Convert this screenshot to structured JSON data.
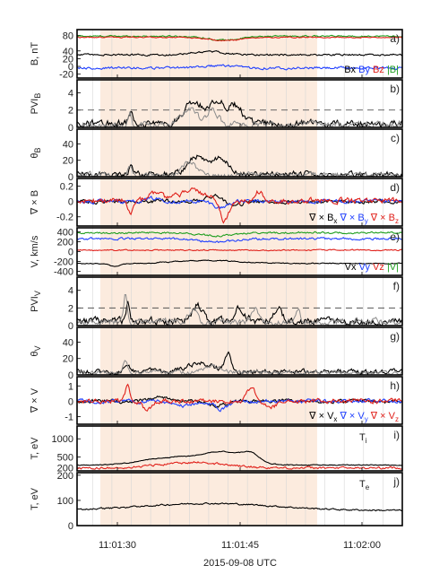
{
  "chart_data": {
    "type": "line",
    "x_axis": {
      "label": "2015-09-08 UTC",
      "ticks": [
        "11:01:30",
        "11:01:45",
        "11:02:00"
      ],
      "range_seconds_after_11_01": [
        23,
        65
      ]
    },
    "shaded_interval_seconds": [
      26,
      54
    ],
    "panels": [
      {
        "id": "a",
        "tag": "a)",
        "ylabel": "B, nT",
        "yticks": [
          "80",
          "40",
          "20",
          "0",
          "-20"
        ],
        "ylim": [
          -30,
          95
        ],
        "legend": [
          {
            "text": "Bx",
            "color": "#000000"
          },
          {
            "text": "By",
            "color": "#1f3fff"
          },
          {
            "text": "Bz",
            "color": "#e0201a"
          },
          {
            "text": "|B|",
            "color": "#1f9e1f"
          }
        ],
        "series": [
          {
            "name": "|B|",
            "color": "#1f9e1f",
            "base": 78,
            "noise": 1.5,
            "bumps": [
              [
                42,
                3,
                -10
              ]
            ]
          },
          {
            "name": "Bz",
            "color": "#e0201a",
            "base": 75,
            "noise": 1.2,
            "bumps": [
              [
                42,
                3,
                -8
              ]
            ]
          },
          {
            "name": "Bx",
            "color": "#000000",
            "base": 30,
            "noise": 2,
            "bumps": [
              [
                40,
                3,
                8
              ]
            ]
          },
          {
            "name": "By",
            "color": "#1f3fff",
            "base": -4,
            "noise": 2.5,
            "bumps": [
              [
                41,
                3,
                6
              ]
            ]
          }
        ]
      },
      {
        "id": "b",
        "tag": "b)",
        "ylabel": "PVI_B",
        "yticks": [
          "4",
          "2",
          "0"
        ],
        "ylim": [
          0,
          5.5
        ],
        "dashed": 2,
        "series": [
          {
            "name": "black",
            "color": "#000000",
            "base": 0.4,
            "noise": 0.35,
            "bumps": [
              [
                30,
                0.4,
                1.4
              ],
              [
                38,
                1.5,
                2.6
              ],
              [
                41,
                1.5,
                2.8
              ],
              [
                43.5,
                1.2,
                2.0
              ]
            ]
          },
          {
            "name": "gray",
            "color": "#8a8a8a",
            "base": 0.3,
            "noise": 0.3,
            "bumps": [
              [
                29.8,
                0.3,
                1.6
              ],
              [
                37.5,
                1.3,
                2.0
              ],
              [
                40.5,
                1.0,
                1.8
              ]
            ]
          }
        ]
      },
      {
        "id": "c",
        "tag": "c)",
        "ylabel": "θ_B",
        "yticks": [
          "40",
          "20",
          "0"
        ],
        "ylim": [
          0,
          58
        ],
        "series": [
          {
            "name": "black",
            "color": "#000000",
            "base": 3,
            "noise": 3,
            "bumps": [
              [
                30,
                0.4,
                10
              ],
              [
                38.5,
                1.5,
                22
              ],
              [
                41.5,
                1.5,
                20
              ]
            ]
          },
          {
            "name": "gray",
            "color": "#8a8a8a",
            "base": 2,
            "noise": 2.5,
            "bumps": [
              [
                29.8,
                0.3,
                12
              ],
              [
                37.5,
                1.2,
                16
              ]
            ]
          }
        ]
      },
      {
        "id": "d",
        "tag": "d)",
        "ylabel": "∇ × B",
        "yticks": [
          "0.2",
          "0",
          "-0.2"
        ],
        "ylim": [
          -0.32,
          0.3
        ],
        "legend": [
          {
            "text": "∇ × B",
            "sub": "x",
            "color": "#000000"
          },
          {
            "text": "∇ × B",
            "sub": "y",
            "color": "#1f3fff"
          },
          {
            "text": "∇ × B",
            "sub": "z",
            "color": "#e0201a"
          }
        ],
        "series": [
          {
            "name": "∇ × B x",
            "color": "#000000",
            "base": 0,
            "noise": 0.02,
            "bumps": [
              [
                41,
                1.5,
                0.08
              ],
              [
                43,
                1.5,
                -0.06
              ]
            ]
          },
          {
            "name": "∇ × B y",
            "color": "#1f3fff",
            "base": 0,
            "noise": 0.02,
            "bumps": [
              [
                33,
                1.5,
                0.04
              ],
              [
                41.5,
                1.2,
                -0.08
              ]
            ]
          },
          {
            "name": "∇ × B z",
            "color": "#e0201a",
            "base": 0.01,
            "noise": 0.03,
            "bumps": [
              [
                30,
                0.5,
                -0.15
              ],
              [
                33,
                1.2,
                0.1
              ],
              [
                38,
                2.5,
                0.12
              ],
              [
                42,
                0.8,
                -0.26
              ],
              [
                46.5,
                0.8,
                0.12
              ]
            ]
          }
        ]
      },
      {
        "id": "e",
        "tag": "e)",
        "ylabel": "V, km/s",
        "yticks": [
          "400",
          "200",
          "0",
          "-200",
          "-400"
        ],
        "ylim": [
          -480,
          480
        ],
        "legend": [
          {
            "text": "Vx",
            "color": "#000000"
          },
          {
            "text": "Vy",
            "color": "#1f3fff"
          },
          {
            "text": "Vz",
            "color": "#e0201a"
          },
          {
            "text": "|V|",
            "color": "#1f9e1f"
          }
        ],
        "series": [
          {
            "name": "|V|",
            "color": "#1f9e1f",
            "base": 380,
            "noise": 15,
            "bumps": [
              [
                41,
                3,
                -60
              ]
            ]
          },
          {
            "name": "Vy",
            "color": "#1f3fff",
            "base": 260,
            "noise": 18,
            "bumps": [
              [
                41,
                3,
                -70
              ]
            ]
          },
          {
            "name": "Vz",
            "color": "#e0201a",
            "base": 30,
            "noise": 10,
            "bumps": []
          },
          {
            "name": "Vx",
            "color": "#000000",
            "base": -240,
            "noise": 8,
            "bumps": [
              [
                28,
                1,
                -60
              ],
              [
                40,
                6,
                60
              ]
            ]
          }
        ]
      },
      {
        "id": "f",
        "tag": "f)",
        "ylabel": "PVI_V",
        "yticks": [
          "4",
          "2",
          "0"
        ],
        "ylim": [
          0,
          5.5
        ],
        "dashed": 2,
        "series": [
          {
            "name": "black",
            "color": "#000000",
            "base": 0.5,
            "noise": 0.35,
            "bumps": [
              [
                29.6,
                0.3,
                2.0
              ],
              [
                38.5,
                1.0,
                1.8
              ],
              [
                44,
                1.0,
                1.5
              ],
              [
                49,
                0.8,
                1.2
              ]
            ]
          },
          {
            "name": "gray",
            "color": "#8a8a8a",
            "base": 0.4,
            "noise": 0.3,
            "bumps": [
              [
                29.3,
                0.3,
                3.1
              ],
              [
                38,
                0.8,
                1.5
              ],
              [
                46,
                0.6,
                1.6
              ],
              [
                51.5,
                0.4,
                1.5
              ]
            ]
          }
        ]
      },
      {
        "id": "g",
        "tag": "g)",
        "ylabel": "θ_V",
        "yticks": [
          "40",
          "20",
          "0"
        ],
        "ylim": [
          0,
          58
        ],
        "series": [
          {
            "name": "black",
            "color": "#000000",
            "base": 4,
            "noise": 2.5,
            "bumps": [
              [
                29.5,
                0.5,
                10
              ],
              [
                39,
                2.5,
                10
              ],
              [
                42.5,
                0.5,
                22
              ]
            ]
          },
          {
            "name": "gray",
            "color": "#8a8a8a",
            "base": 3,
            "noise": 2,
            "bumps": [
              [
                29.2,
                0.4,
                14
              ],
              [
                40.5,
                1.5,
                8
              ]
            ]
          }
        ]
      },
      {
        "id": "h",
        "tag": "h)",
        "ylabel": "∇ × V",
        "yticks": [
          "1",
          "0",
          "-1"
        ],
        "ylim": [
          -1.5,
          1.6
        ],
        "legend": [
          {
            "text": "∇ × V",
            "sub": "x",
            "color": "#000000"
          },
          {
            "text": "∇ × V",
            "sub": "y",
            "color": "#1f3fff"
          },
          {
            "text": "∇ × V",
            "sub": "z",
            "color": "#e0201a"
          }
        ],
        "series": [
          {
            "name": "∇ × V x",
            "color": "#000000",
            "base": 0,
            "noise": 0.1,
            "bumps": [
              [
                34,
                2,
                0.3
              ],
              [
                41,
                1.5,
                -0.3
              ]
            ]
          },
          {
            "name": "∇ × V y",
            "color": "#1f3fff",
            "base": 0,
            "noise": 0.1,
            "bumps": [
              [
                37,
                2,
                -0.3
              ],
              [
                41.5,
                1.2,
                -0.5
              ]
            ]
          },
          {
            "name": "∇ × V z",
            "color": "#e0201a",
            "base": 0,
            "noise": 0.12,
            "bumps": [
              [
                29.5,
                0.4,
                1.0
              ],
              [
                32,
                0.8,
                -0.5
              ],
              [
                45.5,
                0.8,
                0.9
              ],
              [
                48,
                1,
                -0.4
              ]
            ]
          }
        ]
      },
      {
        "id": "i",
        "tag": "i)",
        "ylabel": "T, eV",
        "curve_label": "T",
        "curve_sub": "i",
        "yticks": [
          "1000",
          "500",
          "200"
        ],
        "ylim": [
          120,
          1350
        ],
        "series": [
          {
            "name": "Ti",
            "color": "#000000",
            "base": 280,
            "noise": 10,
            "bumps": [
              [
                35,
                5,
                200
              ],
              [
                42,
                4,
                340
              ],
              [
                45.5,
                1.5,
                200
              ]
            ]
          },
          {
            "name": "red",
            "color": "#e0201a",
            "base": 200,
            "noise": 25,
            "bumps": [
              [
                38,
                6,
                150
              ]
            ]
          }
        ]
      },
      {
        "id": "j",
        "tag": "j)",
        "ylabel": "T, eV",
        "curve_label": "T",
        "curve_sub": "e",
        "yticks": [
          "200",
          "100",
          "0"
        ],
        "ylim": [
          0,
          210
        ],
        "series": [
          {
            "name": "Te",
            "color": "#000000",
            "base": 60,
            "noise": 2.5,
            "bumps": [
              [
                40,
                12,
                28
              ]
            ]
          }
        ]
      }
    ]
  }
}
